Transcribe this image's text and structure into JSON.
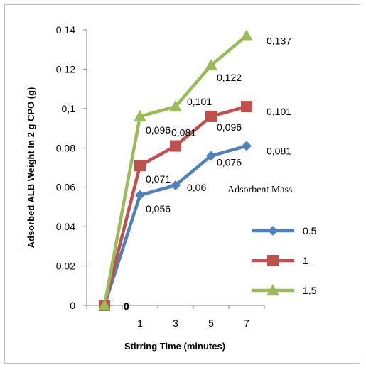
{
  "chart_data": {
    "type": "line",
    "title": "",
    "xlabel": "Stirring Time (minutes)",
    "ylabel": "Adsorbed ALB Weight In 2 g CPO (g)",
    "categories": [
      "",
      "1",
      "3",
      "5",
      "7"
    ],
    "ylim": [
      0,
      0.14
    ],
    "y_ticks": [
      "0",
      "0,02",
      "0,04",
      "0,06",
      "0,08",
      "0,1",
      "0,12",
      "0,14"
    ],
    "grid": false,
    "legend_title": "Adsorbent Mass",
    "legend_position": "right",
    "series": [
      {
        "name": "0.5",
        "values": [
          0,
          0.056,
          0.061,
          0.076,
          0.081
        ],
        "labels": [
          "0",
          "0,056",
          "0,06",
          "0,076",
          "0,081"
        ],
        "color": "#4f81bd",
        "marker": "diamond"
      },
      {
        "name": "1",
        "values": [
          0,
          0.071,
          0.081,
          0.096,
          0.101
        ],
        "labels": [
          "0",
          "0,071",
          "0,081",
          "0,096",
          "0,101"
        ],
        "color": "#c0504d",
        "marker": "square"
      },
      {
        "name": "1,5",
        "values": [
          0,
          0.096,
          0.101,
          0.122,
          0.137
        ],
        "labels": [
          "0",
          "0,096",
          "0,101",
          "0,122",
          "0,137"
        ],
        "color": "#9bbb59",
        "marker": "triangle"
      }
    ]
  }
}
